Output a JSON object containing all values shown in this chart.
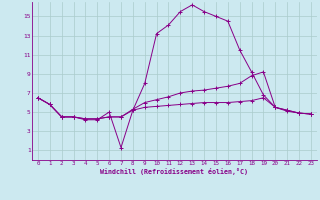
{
  "xlabel": "Windchill (Refroidissement éolien,°C)",
  "background_color": "#cce9f0",
  "line_color": "#880088",
  "grid_color": "#aacccc",
  "xlim": [
    -0.5,
    23.5
  ],
  "ylim": [
    0,
    16.5
  ],
  "xticks": [
    0,
    1,
    2,
    3,
    4,
    5,
    6,
    7,
    8,
    9,
    10,
    11,
    12,
    13,
    14,
    15,
    16,
    17,
    18,
    19,
    20,
    21,
    22,
    23
  ],
  "yticks": [
    1,
    3,
    5,
    7,
    9,
    11,
    13,
    15
  ],
  "series": [
    [
      6.5,
      5.8,
      4.5,
      4.5,
      4.2,
      4.2,
      5.0,
      1.3,
      5.2,
      8.0,
      13.2,
      14.1,
      15.5,
      16.2,
      15.5,
      15.0,
      14.5,
      11.5,
      9.2,
      6.8,
      5.5,
      5.1,
      4.9,
      4.8
    ],
    [
      6.5,
      5.8,
      4.5,
      4.5,
      4.3,
      4.3,
      4.5,
      4.5,
      5.3,
      6.0,
      6.3,
      6.6,
      7.0,
      7.2,
      7.3,
      7.5,
      7.7,
      8.0,
      8.8,
      9.2,
      5.5,
      5.2,
      4.9,
      4.8
    ],
    [
      6.5,
      5.8,
      4.5,
      4.5,
      4.3,
      4.3,
      4.5,
      4.5,
      5.2,
      5.5,
      5.6,
      5.7,
      5.8,
      5.9,
      6.0,
      6.0,
      6.0,
      6.1,
      6.2,
      6.5,
      5.5,
      5.2,
      4.9,
      4.8
    ]
  ]
}
